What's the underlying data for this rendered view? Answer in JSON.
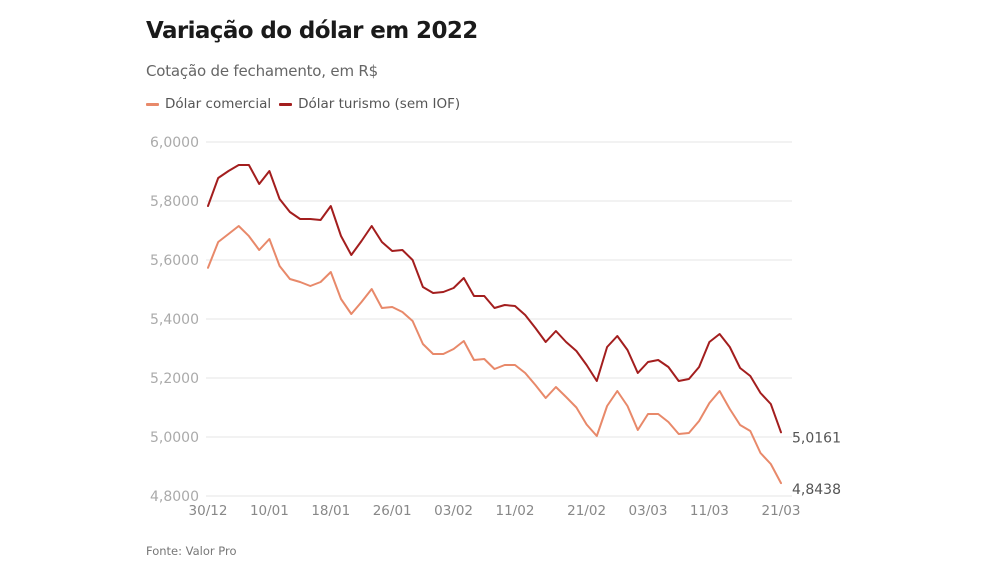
{
  "chart_data": {
    "type": "line",
    "title": "Variação do dólar em 2022",
    "subtitle": "Cotação de fechamento, em R$",
    "source": "Fonte: Valor Pro",
    "xlabel": "",
    "ylabel": "",
    "ylim": [
      4.8,
      6.0
    ],
    "yticks": [
      "6,0000",
      "5,8000",
      "5,6000",
      "5,4000",
      "5,2000",
      "5,0000",
      "4,8000"
    ],
    "ytick_values": [
      6.0,
      5.8,
      5.6,
      5.4,
      5.2,
      5.0,
      4.8
    ],
    "xticks": [
      "30/12",
      "10/01",
      "18/01",
      "26/01",
      "03/02",
      "11/02",
      "21/02",
      "03/03",
      "11/03",
      "21/03"
    ],
    "xtick_index": [
      0,
      6,
      12,
      18,
      24,
      30,
      37,
      43,
      49,
      56
    ],
    "grid": true,
    "legend_position": "top-left",
    "end_labels": [
      "5,0161",
      "4,8438"
    ],
    "colors": {
      "comercial": "#e8896a",
      "turismo": "#a31e1e",
      "grid": "#e6e6e6"
    },
    "series": [
      {
        "name": "Dólar comercial",
        "key": "comercial",
        "values": [
          5.5735,
          5.661,
          5.6881,
          5.7153,
          5.681,
          5.6339,
          5.6712,
          5.5797,
          5.5356,
          5.5254,
          5.5119,
          5.5254,
          5.5593,
          5.4678,
          5.4169,
          5.4576,
          5.5017,
          5.4373,
          5.4407,
          5.4237,
          5.3932,
          5.3153,
          5.2814,
          5.2814,
          5.2983,
          5.3254,
          5.261,
          5.2644,
          5.2305,
          5.2441,
          5.2441,
          5.2169,
          5.1763,
          5.1322,
          5.1695,
          5.1356,
          5.1,
          5.0424,
          5.0034,
          5.1051,
          5.1559,
          5.1051,
          5.0237,
          5.078,
          5.078,
          5.0508,
          5.0102,
          5.0136,
          5.0542,
          5.1153,
          5.1559,
          5.0949,
          5.0407,
          5.0203,
          4.9458,
          4.9085,
          4.8438
        ]
      },
      {
        "name": "Dólar turismo (sem IOF)",
        "key": "turismo",
        "values": [
          5.7831,
          5.878,
          5.9017,
          5.922,
          5.922,
          5.8576,
          5.9017,
          5.8068,
          5.7627,
          5.739,
          5.739,
          5.7356,
          5.7831,
          5.6814,
          5.6169,
          5.6644,
          5.7153,
          5.661,
          5.6305,
          5.6339,
          5.6,
          5.5085,
          5.4881,
          5.4915,
          5.5051,
          5.539,
          5.478,
          5.478,
          5.4373,
          5.4475,
          5.4441,
          5.4136,
          5.3695,
          5.322,
          5.3593,
          5.322,
          5.2915,
          5.2441,
          5.1898,
          5.3051,
          5.3424,
          5.2949,
          5.2169,
          5.2542,
          5.261,
          5.2373,
          5.1898,
          5.1966,
          5.2373,
          5.322,
          5.3492,
          5.3051,
          5.2339,
          5.2068,
          5.1492,
          5.1119,
          5.0161
        ]
      }
    ]
  }
}
